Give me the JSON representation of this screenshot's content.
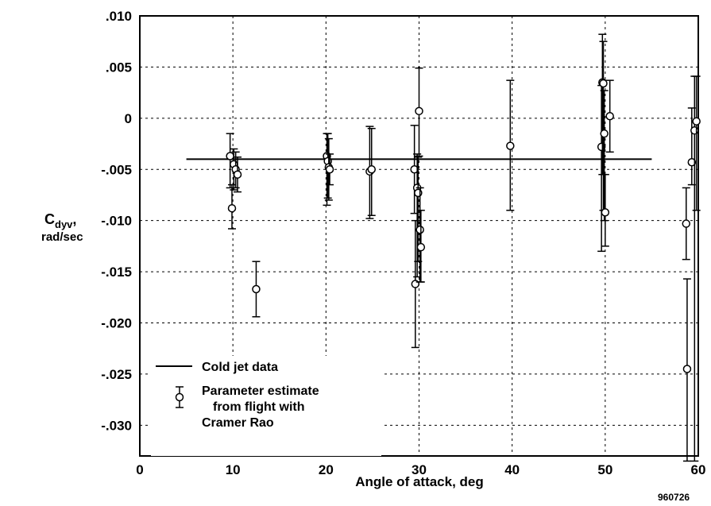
{
  "chart_data": {
    "type": "scatter",
    "title": "",
    "xlabel": "Angle of attack, deg",
    "ylabel": {
      "main": "C",
      "subscript": "dyv",
      "comma": ",",
      "units": "rad/sec"
    },
    "xlim": [
      0,
      60
    ],
    "ylim": [
      -0.033,
      0.01
    ],
    "x_ticks": [
      0,
      10,
      20,
      30,
      40,
      50,
      60
    ],
    "x_tick_labels": [
      "0",
      "10",
      "20",
      "30",
      "40",
      "50",
      "60"
    ],
    "y_ticks": [
      0.01,
      0.005,
      0,
      -0.005,
      -0.01,
      -0.015,
      -0.02,
      -0.025,
      -0.03
    ],
    "y_tick_labels": [
      ".010",
      ".005",
      "0",
      "-.005",
      "-.010",
      "-.015",
      "-.020",
      "-.025",
      "-.030"
    ],
    "grid": true,
    "legend_position": "bottom-left",
    "figure_id": "960726",
    "series": [
      {
        "name": "Cold jet data",
        "kind": "line",
        "x": [
          5,
          55
        ],
        "y": [
          -0.004,
          -0.004
        ]
      },
      {
        "name": "Parameter estimate from flight with Cramer Rao",
        "kind": "errorbar",
        "points": [
          {
            "x": 9.7,
            "y": -0.0037,
            "lo": -0.0068,
            "hi": -0.0015
          },
          {
            "x": 9.9,
            "y": -0.0088,
            "lo": -0.0108,
            "hi": -0.0065
          },
          {
            "x": 10.1,
            "y": -0.0045,
            "lo": -0.007,
            "hi": -0.003
          },
          {
            "x": 10.3,
            "y": -0.005,
            "lo": -0.0068,
            "hi": -0.0033
          },
          {
            "x": 10.5,
            "y": -0.0055,
            "lo": -0.0072,
            "hi": -0.0038
          },
          {
            "x": 12.5,
            "y": -0.0167,
            "lo": -0.0194,
            "hi": -0.014
          },
          {
            "x": 20.1,
            "y": -0.0037,
            "lo": -0.0085,
            "hi": -0.0015
          },
          {
            "x": 20.2,
            "y": -0.0042,
            "lo": -0.0078,
            "hi": -0.0015
          },
          {
            "x": 20.3,
            "y": -0.0048,
            "lo": -0.008,
            "hi": -0.002
          },
          {
            "x": 20.4,
            "y": -0.005,
            "lo": -0.0065,
            "hi": -0.0035
          },
          {
            "x": 24.7,
            "y": -0.0052,
            "lo": -0.0098,
            "hi": -0.0008
          },
          {
            "x": 24.9,
            "y": -0.005,
            "lo": -0.0095,
            "hi": -0.001
          },
          {
            "x": 29.5,
            "y": -0.005,
            "lo": -0.0093,
            "hi": -0.0007
          },
          {
            "x": 29.6,
            "y": -0.0162,
            "lo": -0.0224,
            "hi": -0.01
          },
          {
            "x": 29.8,
            "y": -0.0068,
            "lo": -0.0155,
            "hi": -0.0035
          },
          {
            "x": 29.9,
            "y": -0.0073,
            "lo": -0.014,
            "hi": -0.0038
          },
          {
            "x": 30.0,
            "y": 0.0007,
            "lo": -0.0037,
            "hi": 0.0049
          },
          {
            "x": 30.1,
            "y": -0.0109,
            "lo": -0.016,
            "hi": -0.0068
          },
          {
            "x": 30.2,
            "y": -0.0126,
            "lo": -0.016,
            "hi": -0.009
          },
          {
            "x": 39.8,
            "y": -0.0027,
            "lo": -0.009,
            "hi": 0.0037
          },
          {
            "x": 49.6,
            "y": -0.0028,
            "lo": -0.013,
            "hi": 0.0032
          },
          {
            "x": 49.7,
            "y": 0.0035,
            "lo": -0.0055,
            "hi": 0.0082
          },
          {
            "x": 49.8,
            "y": 0.0034,
            "lo": -0.009,
            "hi": 0.0075
          },
          {
            "x": 49.9,
            "y": -0.0015,
            "lo": -0.01,
            "hi": 0.0027
          },
          {
            "x": 50.0,
            "y": -0.0092,
            "lo": -0.0125,
            "hi": -0.0055
          },
          {
            "x": 50.5,
            "y": 0.0002,
            "lo": -0.0033,
            "hi": 0.0037
          },
          {
            "x": 58.7,
            "y": -0.0103,
            "lo": -0.0138,
            "hi": -0.0068
          },
          {
            "x": 58.8,
            "y": -0.0245,
            "lo": -0.0335,
            "hi": -0.0157
          },
          {
            "x": 59.3,
            "y": -0.0043,
            "lo": -0.0065,
            "hi": 0.001
          },
          {
            "x": 59.6,
            "y": -0.0012,
            "lo": -0.0335,
            "hi": 0.0041
          },
          {
            "x": 59.8,
            "y": -0.0003,
            "lo": -0.009,
            "hi": 0.0041
          }
        ]
      }
    ],
    "legend": [
      {
        "label": "Cold jet data",
        "kind": "line"
      },
      {
        "label_lines": [
          "Parameter estimate",
          "from flight with",
          "Cramer Rao"
        ],
        "kind": "errorbar"
      }
    ]
  }
}
